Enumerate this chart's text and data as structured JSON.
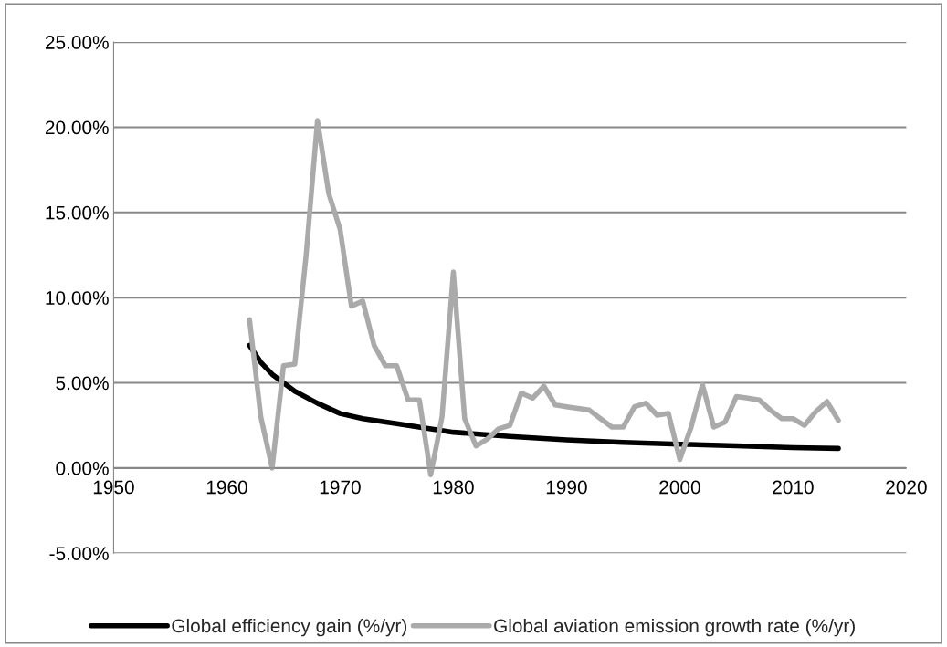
{
  "chart_data": {
    "type": "line",
    "xlim": [
      1950,
      2020
    ],
    "xticks": [
      1950,
      1960,
      1970,
      1980,
      1990,
      2000,
      2010,
      2020
    ],
    "ylim": [
      -5,
      25
    ],
    "yticks": [
      {
        "value": -5,
        "label": "-5.00%"
      },
      {
        "value": 0,
        "label": "0.00%"
      },
      {
        "value": 5,
        "label": "5.00%"
      },
      {
        "value": 10,
        "label": "10.00%"
      },
      {
        "value": 15,
        "label": "15.00%"
      },
      {
        "value": 20,
        "label": "20.00%"
      },
      {
        "value": 25,
        "label": "25.00%"
      }
    ],
    "grid": "y",
    "legend": "bottom",
    "marker": "none",
    "line_style": "solid",
    "series": [
      {
        "name": "Global efficiency gain (%/yr)",
        "color": "#000000",
        "x": [
          1962,
          1963,
          1964,
          1965,
          1966,
          1968,
          1970,
          1972,
          1975,
          1980,
          1985,
          1990,
          1995,
          2000,
          2005,
          2010,
          2014
        ],
        "values": [
          7.2,
          6.2,
          5.5,
          5.0,
          4.5,
          3.8,
          3.2,
          2.9,
          2.6,
          2.1,
          1.85,
          1.65,
          1.5,
          1.4,
          1.3,
          1.2,
          1.15
        ]
      },
      {
        "name": "Global aviation emission growth rate (%/yr)",
        "color": "#aaaaaa",
        "x": [
          1962,
          1963,
          1964,
          1965,
          1966,
          1967,
          1968,
          1969,
          1970,
          1971,
          1972,
          1973,
          1974,
          1975,
          1976,
          1977,
          1978,
          1979,
          1980,
          1981,
          1982,
          1983,
          1984,
          1985,
          1986,
          1987,
          1988,
          1989,
          1990,
          1991,
          1992,
          1993,
          1994,
          1995,
          1996,
          1997,
          1998,
          1999,
          2000,
          2001,
          2002,
          2003,
          2004,
          2005,
          2006,
          2007,
          2008,
          2009,
          2010,
          2011,
          2012,
          2013,
          2014
        ],
        "values": [
          8.7,
          3.0,
          0.0,
          6.0,
          6.1,
          12.5,
          20.4,
          16.1,
          14.0,
          9.5,
          9.8,
          7.2,
          6.0,
          6.0,
          4.0,
          4.0,
          -0.4,
          3.0,
          11.5,
          2.9,
          1.3,
          1.7,
          2.3,
          2.5,
          4.4,
          4.1,
          4.8,
          3.7,
          3.6,
          3.5,
          3.4,
          2.9,
          2.4,
          2.4,
          3.6,
          3.8,
          3.1,
          3.2,
          0.5,
          2.4,
          4.9,
          2.4,
          2.7,
          4.2,
          4.1,
          4.0,
          3.4,
          2.9,
          2.9,
          2.5,
          3.3,
          3.9,
          2.8
        ]
      }
    ]
  }
}
